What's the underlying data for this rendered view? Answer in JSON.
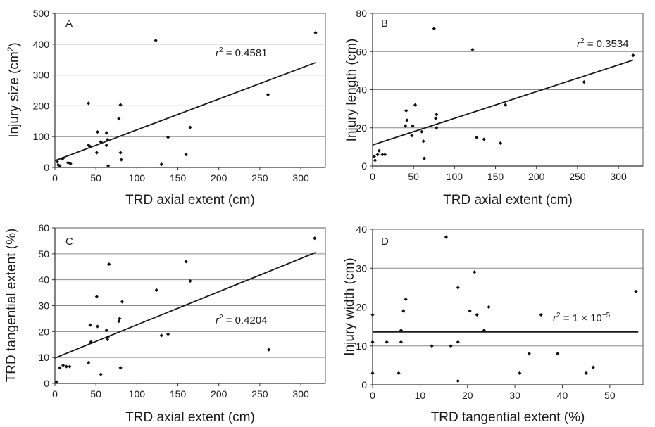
{
  "chart_data": [
    {
      "type": "scatter",
      "panel_label": "A",
      "xlabel": "TRD axial extent (cm)",
      "ylabel_main": "Injury size (cm",
      "ylabel_sup": "2",
      "ylabel_close": ")",
      "xlim": [
        0,
        330
      ],
      "ylim": [
        0,
        500
      ],
      "xticks": [
        0,
        50,
        100,
        150,
        200,
        250,
        300
      ],
      "yticks": [
        0,
        100,
        200,
        300,
        400,
        500
      ],
      "grid": "horizontal",
      "r2_text": "= 0.4581",
      "trendline": {
        "x": [
          0,
          318
        ],
        "y": [
          22,
          340
        ]
      },
      "points": [
        {
          "x": 3,
          "y": 18
        },
        {
          "x": 4,
          "y": 8
        },
        {
          "x": 6,
          "y": 5
        },
        {
          "x": 9,
          "y": 28
        },
        {
          "x": 10,
          "y": 30
        },
        {
          "x": 16,
          "y": 15
        },
        {
          "x": 19,
          "y": 12
        },
        {
          "x": 41,
          "y": 208
        },
        {
          "x": 41,
          "y": 72
        },
        {
          "x": 43,
          "y": 68
        },
        {
          "x": 51,
          "y": 48
        },
        {
          "x": 52,
          "y": 115
        },
        {
          "x": 56,
          "y": 83
        },
        {
          "x": 63,
          "y": 112
        },
        {
          "x": 63,
          "y": 72
        },
        {
          "x": 64,
          "y": 90
        },
        {
          "x": 65,
          "y": 5
        },
        {
          "x": 78,
          "y": 158
        },
        {
          "x": 80,
          "y": 203
        },
        {
          "x": 80,
          "y": 48
        },
        {
          "x": 81,
          "y": 25
        },
        {
          "x": 123,
          "y": 412
        },
        {
          "x": 130,
          "y": 10
        },
        {
          "x": 138,
          "y": 98
        },
        {
          "x": 160,
          "y": 42
        },
        {
          "x": 165,
          "y": 130
        },
        {
          "x": 260,
          "y": 236
        },
        {
          "x": 318,
          "y": 437
        }
      ]
    },
    {
      "type": "scatter",
      "panel_label": "B",
      "xlabel": "TRD axial extent (cm)",
      "ylabel_main": "Injury length (cm)",
      "ylabel_sup": "",
      "ylabel_close": "",
      "xlim": [
        0,
        330
      ],
      "ylim": [
        0,
        80
      ],
      "xticks": [
        0,
        50,
        100,
        150,
        200,
        250,
        300
      ],
      "yticks": [
        0,
        20,
        40,
        60,
        80
      ],
      "grid": "horizontal",
      "r2_text": "= 0.3534",
      "trendline": {
        "x": [
          0,
          318
        ],
        "y": [
          11,
          55.5
        ]
      },
      "points": [
        {
          "x": 2,
          "y": 5
        },
        {
          "x": 3,
          "y": 3
        },
        {
          "x": 6,
          "y": 6
        },
        {
          "x": 8,
          "y": 8
        },
        {
          "x": 12,
          "y": 6
        },
        {
          "x": 15,
          "y": 6
        },
        {
          "x": 40,
          "y": 21
        },
        {
          "x": 41,
          "y": 29
        },
        {
          "x": 42,
          "y": 24
        },
        {
          "x": 48,
          "y": 16
        },
        {
          "x": 49,
          "y": 21
        },
        {
          "x": 52,
          "y": 32
        },
        {
          "x": 60,
          "y": 18
        },
        {
          "x": 62,
          "y": 13
        },
        {
          "x": 63,
          "y": 4
        },
        {
          "x": 75,
          "y": 72
        },
        {
          "x": 77,
          "y": 25
        },
        {
          "x": 78,
          "y": 27
        },
        {
          "x": 78,
          "y": 20
        },
        {
          "x": 122,
          "y": 61
        },
        {
          "x": 127,
          "y": 15
        },
        {
          "x": 136,
          "y": 14
        },
        {
          "x": 156,
          "y": 12
        },
        {
          "x": 162,
          "y": 32
        },
        {
          "x": 258,
          "y": 44
        },
        {
          "x": 318,
          "y": 58
        }
      ]
    },
    {
      "type": "scatter",
      "panel_label": "C",
      "xlabel": "TRD axial extent (cm)",
      "ylabel_main": "TRD tangential extent (%)",
      "ylabel_sup": "",
      "ylabel_close": "",
      "xlim": [
        0,
        330
      ],
      "ylim": [
        0,
        60
      ],
      "xticks": [
        0,
        50,
        100,
        150,
        200,
        250,
        300
      ],
      "yticks": [
        0,
        10,
        20,
        30,
        40,
        50,
        60
      ],
      "grid": "horizontal",
      "r2_text": "= 0.4204",
      "trendline": {
        "x": [
          0,
          318
        ],
        "y": [
          9.8,
          50.5
        ]
      },
      "points": [
        {
          "x": 2,
          "y": 0.5
        },
        {
          "x": 6,
          "y": 6
        },
        {
          "x": 10,
          "y": 7
        },
        {
          "x": 14,
          "y": 6.5
        },
        {
          "x": 18,
          "y": 6.5
        },
        {
          "x": 41,
          "y": 8
        },
        {
          "x": 43,
          "y": 22.5
        },
        {
          "x": 44,
          "y": 16
        },
        {
          "x": 51,
          "y": 33.5
        },
        {
          "x": 52,
          "y": 22
        },
        {
          "x": 56,
          "y": 3.5
        },
        {
          "x": 63,
          "y": 20.5
        },
        {
          "x": 64,
          "y": 17
        },
        {
          "x": 65,
          "y": 18
        },
        {
          "x": 66,
          "y": 46
        },
        {
          "x": 78,
          "y": 24
        },
        {
          "x": 79,
          "y": 25
        },
        {
          "x": 80,
          "y": 6
        },
        {
          "x": 82,
          "y": 31.5
        },
        {
          "x": 124,
          "y": 36
        },
        {
          "x": 130,
          "y": 18.5
        },
        {
          "x": 138,
          "y": 19
        },
        {
          "x": 160,
          "y": 47
        },
        {
          "x": 165,
          "y": 39.5
        },
        {
          "x": 261,
          "y": 13
        },
        {
          "x": 317,
          "y": 56
        }
      ]
    },
    {
      "type": "scatter",
      "panel_label": "D",
      "xlabel": "TRD tangential extent (%)",
      "ylabel_main": "Injury width (cm)",
      "ylabel_sup": "",
      "ylabel_close": "",
      "xlim": [
        0,
        57
      ],
      "ylim": [
        0,
        40
      ],
      "xticks": [
        0,
        10,
        20,
        30,
        40,
        50
      ],
      "yticks": [
        0,
        10,
        20,
        30,
        40
      ],
      "grid": "horizontal",
      "r2_text": "= 1 × 10",
      "r2_exp": "−5",
      "trendline": {
        "x": [
          0,
          56
        ],
        "y": [
          13.6,
          13.6
        ]
      },
      "points": [
        {
          "x": 0,
          "y": 18
        },
        {
          "x": 0,
          "y": 11
        },
        {
          "x": 0,
          "y": 3
        },
        {
          "x": 3,
          "y": 11
        },
        {
          "x": 5.5,
          "y": 3
        },
        {
          "x": 6,
          "y": 11
        },
        {
          "x": 6,
          "y": 14
        },
        {
          "x": 6.5,
          "y": 19
        },
        {
          "x": 7,
          "y": 22
        },
        {
          "x": 12.5,
          "y": 10
        },
        {
          "x": 15.5,
          "y": 38
        },
        {
          "x": 16.5,
          "y": 10
        },
        {
          "x": 18,
          "y": 25
        },
        {
          "x": 18,
          "y": 11
        },
        {
          "x": 18,
          "y": 1
        },
        {
          "x": 20.5,
          "y": 19
        },
        {
          "x": 21.5,
          "y": 29
        },
        {
          "x": 22,
          "y": 18
        },
        {
          "x": 23.5,
          "y": 14
        },
        {
          "x": 24.5,
          "y": 20
        },
        {
          "x": 31,
          "y": 3
        },
        {
          "x": 33,
          "y": 8
        },
        {
          "x": 35.5,
          "y": 18
        },
        {
          "x": 39,
          "y": 8
        },
        {
          "x": 45,
          "y": 3
        },
        {
          "x": 46.5,
          "y": 4.5
        },
        {
          "x": 55.5,
          "y": 24
        }
      ]
    }
  ]
}
